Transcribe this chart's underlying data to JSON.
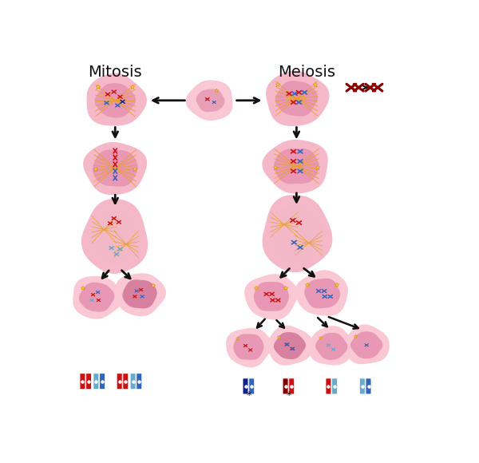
{
  "title_mitosis": "Mitosis",
  "title_meiosis": "Meiosis",
  "bg_color": "#ffffff",
  "c_outer_light": "#f9c8d4",
  "c_outer": "#f5b8c8",
  "c_nucleus": "#e898b4",
  "c_nucleus_dark": "#d880a0",
  "c_red": "#cc1111",
  "c_dark_red": "#880000",
  "c_blue": "#3366bb",
  "c_navy": "#112288",
  "c_light_blue": "#66aacc",
  "c_spindle": "#e8a020",
  "c_arrow": "#111111",
  "title_size": 14
}
